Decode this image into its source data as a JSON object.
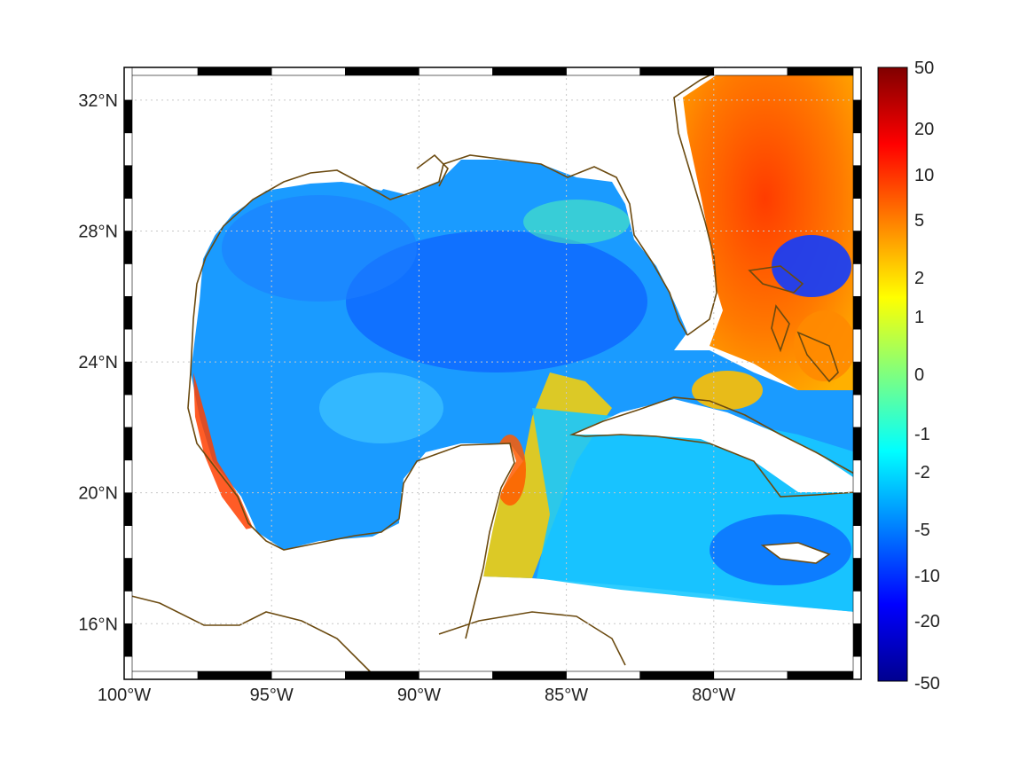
{
  "map": {
    "lon_labels": [
      "100°W",
      "95°W",
      "90°W",
      "85°W",
      "80°W"
    ],
    "lon_values": [
      -100,
      -95,
      -90,
      -85,
      -80
    ],
    "lat_labels": [
      "16°N",
      "20°N",
      "24°N",
      "28°N",
      "32°N"
    ],
    "lat_values": [
      16,
      20,
      24,
      28,
      32
    ],
    "lon_range": [
      -100,
      -75
    ],
    "lat_range": [
      14.3,
      33
    ],
    "grid": true,
    "coastline_color": "#6b4a10",
    "land_color": "#ffffff"
  },
  "colorbar": {
    "tick_labels": [
      "50",
      "20",
      "10",
      "5",
      "2",
      "1",
      "0",
      "-1",
      "-2",
      "-5",
      "-10",
      "-20",
      "-50"
    ],
    "colormap": "jet",
    "range": [
      -50,
      50
    ]
  }
}
